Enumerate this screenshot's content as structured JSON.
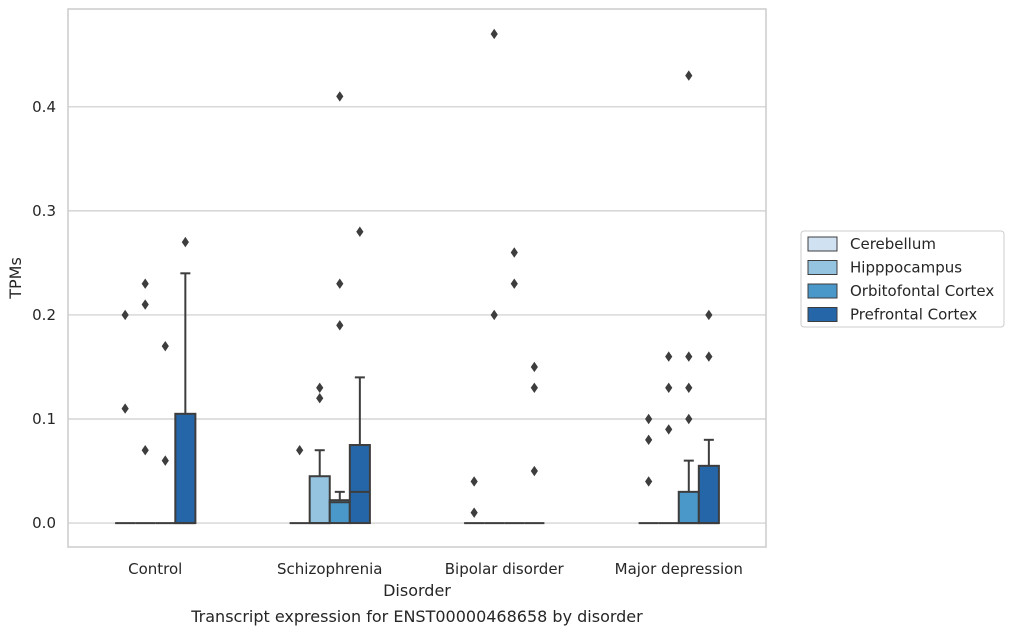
{
  "chart_data": {
    "type": "box",
    "title": "",
    "caption": "Transcript expression for ENST00000468658 by disorder",
    "xlabel": "Disorder",
    "ylabel": "TPMs",
    "ylim": [
      -0.023,
      0.494
    ],
    "yticks": [
      0.0,
      0.1,
      0.2,
      0.3,
      0.4
    ],
    "ytick_labels": [
      "0.0",
      "0.1",
      "0.2",
      "0.3",
      "0.4"
    ],
    "grid": "horizontal",
    "legend_position": "right",
    "categories": [
      "Control",
      "Schizophrenia",
      "Bipolar disorder",
      "Major depression"
    ],
    "series": [
      {
        "name": "Cerebellum",
        "color": "#d0e1f2",
        "boxes": [
          {
            "q1": 0,
            "median": 0,
            "q3": 0,
            "whisker_low": 0,
            "whisker_high": 0,
            "outliers": [
              0.2,
              0.11
            ]
          },
          {
            "q1": 0,
            "median": 0,
            "q3": 0,
            "whisker_low": 0,
            "whisker_high": 0,
            "outliers": [
              0.07
            ]
          },
          {
            "q1": 0,
            "median": 0,
            "q3": 0,
            "whisker_low": 0,
            "whisker_high": 0,
            "outliers": [
              0.04,
              0.01
            ]
          },
          {
            "q1": 0,
            "median": 0,
            "q3": 0,
            "whisker_low": 0,
            "whisker_high": 0,
            "outliers": [
              0.1,
              0.08,
              0.04
            ]
          }
        ]
      },
      {
        "name": "Hipppocampus",
        "color": "#94c4df",
        "boxes": [
          {
            "q1": 0,
            "median": 0,
            "q3": 0,
            "whisker_low": 0,
            "whisker_high": 0,
            "outliers": [
              0.23,
              0.21,
              0.07
            ]
          },
          {
            "q1": 0,
            "median": 0,
            "q3": 0.045,
            "whisker_low": 0,
            "whisker_high": 0.07,
            "outliers": [
              0.13,
              0.12
            ]
          },
          {
            "q1": 0,
            "median": 0,
            "q3": 0,
            "whisker_low": 0,
            "whisker_high": 0,
            "outliers": [
              0.47,
              0.2
            ]
          },
          {
            "q1": 0,
            "median": 0,
            "q3": 0,
            "whisker_low": 0,
            "whisker_high": 0,
            "outliers": [
              0.16,
              0.13,
              0.09
            ]
          }
        ]
      },
      {
        "name": "Orbitofontal Cortex",
        "color": "#4a98c9",
        "boxes": [
          {
            "q1": 0,
            "median": 0,
            "q3": 0,
            "whisker_low": 0,
            "whisker_high": 0,
            "outliers": [
              0.17,
              0.06
            ]
          },
          {
            "q1": 0,
            "median": 0.02,
            "q3": 0.022,
            "whisker_low": 0,
            "whisker_high": 0.03,
            "outliers": [
              0.41,
              0.23,
              0.19
            ]
          },
          {
            "q1": 0,
            "median": 0,
            "q3": 0,
            "whisker_low": 0,
            "whisker_high": 0,
            "outliers": [
              0.26,
              0.23
            ]
          },
          {
            "q1": 0,
            "median": 0,
            "q3": 0.03,
            "whisker_low": 0,
            "whisker_high": 0.06,
            "outliers": [
              0.43,
              0.16,
              0.13,
              0.1
            ]
          }
        ]
      },
      {
        "name": "Prefrontal Cortex",
        "color": "#2566a8",
        "boxes": [
          {
            "q1": 0,
            "median": 0,
            "q3": 0.105,
            "whisker_low": 0,
            "whisker_high": 0.24,
            "outliers": [
              0.27
            ]
          },
          {
            "q1": 0,
            "median": 0.03,
            "q3": 0.075,
            "whisker_low": 0,
            "whisker_high": 0.14,
            "outliers": [
              0.28
            ]
          },
          {
            "q1": 0,
            "median": 0,
            "q3": 0,
            "whisker_low": 0,
            "whisker_high": 0,
            "outliers": [
              0.15,
              0.13,
              0.05
            ]
          },
          {
            "q1": 0,
            "median": 0,
            "q3": 0.055,
            "whisker_low": 0,
            "whisker_high": 0.08,
            "outliers": [
              0.2,
              0.16
            ]
          }
        ]
      }
    ],
    "colors": {
      "edge": "#3d3d3d",
      "grid": "#cccccc",
      "spine": "#cccccc",
      "text": "#262626",
      "legend_border": "#cccccc"
    }
  }
}
